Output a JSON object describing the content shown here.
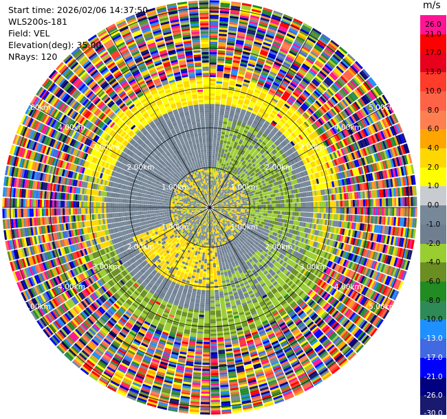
{
  "header": {
    "start_time": "Start time: 2026/02/06 14:37:50",
    "instrument": "WLS200s-181",
    "field": "Field: VEL",
    "elevation": "Elevation(deg): 35.00",
    "nrays": "NRays: 120"
  },
  "chart_data": {
    "type": "heatmap",
    "plot_kind": "polar-ppi",
    "field": "VEL",
    "n_rays": 120,
    "max_range_km": 5.2,
    "range_rings_km": [
      1.0,
      2.0,
      3.0,
      4.0,
      5.0
    ],
    "ring_label_suffix": "km",
    "spoke_angles_deg": [
      0,
      30,
      60,
      90,
      120,
      150,
      180,
      210,
      240,
      270,
      300,
      330
    ],
    "colorbar": {
      "unit": "m/s",
      "ticks": [
        "26.0",
        "21.0",
        "17.0",
        "13.0",
        "10.0",
        "8.0",
        "6.0",
        "4.0",
        "2.0",
        "1.0",
        "0.0",
        "-1.0",
        "-2.0",
        "-4.0",
        "-6.0",
        "-8.0",
        "-10.0",
        "-13.0",
        "-17.0",
        "-21.0",
        "-26.0",
        "-30.0"
      ],
      "colors": [
        "#ff1493",
        "#ff0000",
        "#e8001c",
        "#ff3b2a",
        "#ff6347",
        "#ff7f50",
        "#ffa500",
        "#ffd700",
        "#ffff00",
        "#c8ccd0",
        "#778899",
        "#6f7f90",
        "#9acd32",
        "#6b8e23",
        "#228b22",
        "#2e8b57",
        "#1e90ff",
        "#4169e1",
        "#0000ff",
        "#000080",
        "#191970"
      ]
    },
    "regions": [
      {
        "from_km": 0.0,
        "to_km": 1.0,
        "description_color": "mixed yellow/gray"
      },
      {
        "from_km": 1.0,
        "to_km": 2.6,
        "description_color": "gray with green/yellow lobes"
      },
      {
        "from_km": 2.6,
        "to_km": 3.3,
        "description_color": "yellow north, green south"
      },
      {
        "from_km": 3.3,
        "to_km": 5.2,
        "description_color": "noise"
      }
    ]
  }
}
